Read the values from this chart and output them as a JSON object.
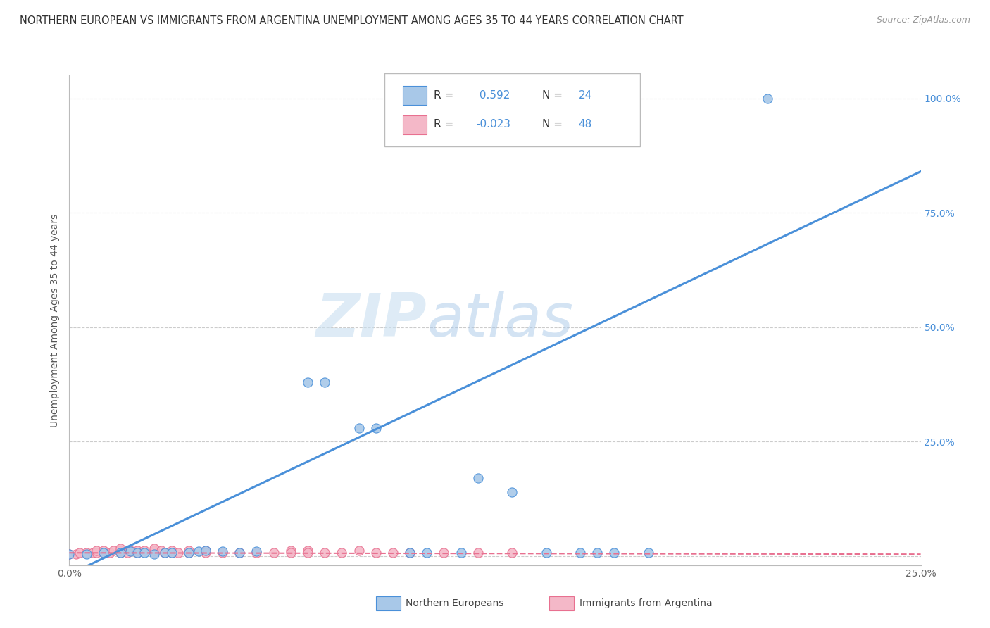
{
  "title": "NORTHERN EUROPEAN VS IMMIGRANTS FROM ARGENTINA UNEMPLOYMENT AMONG AGES 35 TO 44 YEARS CORRELATION CHART",
  "source": "Source: ZipAtlas.com",
  "ylabel": "Unemployment Among Ages 35 to 44 years",
  "xlim": [
    0.0,
    0.25
  ],
  "ylim": [
    -0.02,
    1.05
  ],
  "blue_color": "#a8c8e8",
  "pink_color": "#f4b8c8",
  "blue_line_color": "#4a90d9",
  "pink_line_color": "#e87090",
  "watermark_zip": "ZIP",
  "watermark_atlas": "atlas",
  "title_fontsize": 10.5,
  "source_fontsize": 9,
  "axis_label_fontsize": 10,
  "tick_fontsize": 10,
  "blue_scatter": [
    [
      0.0,
      0.005
    ],
    [
      0.005,
      0.005
    ],
    [
      0.01,
      0.008
    ],
    [
      0.015,
      0.008
    ],
    [
      0.018,
      0.01
    ],
    [
      0.02,
      0.008
    ],
    [
      0.022,
      0.008
    ],
    [
      0.025,
      0.005
    ],
    [
      0.028,
      0.008
    ],
    [
      0.03,
      0.008
    ],
    [
      0.035,
      0.008
    ],
    [
      0.038,
      0.01
    ],
    [
      0.04,
      0.012
    ],
    [
      0.045,
      0.01
    ],
    [
      0.05,
      0.008
    ],
    [
      0.055,
      0.01
    ],
    [
      0.07,
      0.38
    ],
    [
      0.075,
      0.38
    ],
    [
      0.085,
      0.28
    ],
    [
      0.09,
      0.28
    ],
    [
      0.1,
      0.008
    ],
    [
      0.105,
      0.008
    ],
    [
      0.115,
      0.008
    ],
    [
      0.12,
      0.17
    ],
    [
      0.13,
      0.14
    ],
    [
      0.14,
      0.008
    ],
    [
      0.15,
      0.008
    ],
    [
      0.155,
      0.008
    ],
    [
      0.16,
      0.008
    ],
    [
      0.17,
      0.008
    ],
    [
      0.205,
      1.0
    ]
  ],
  "pink_scatter": [
    [
      0.0,
      0.005
    ],
    [
      0.002,
      0.005
    ],
    [
      0.003,
      0.007
    ],
    [
      0.005,
      0.007
    ],
    [
      0.007,
      0.007
    ],
    [
      0.008,
      0.007
    ],
    [
      0.008,
      0.012
    ],
    [
      0.01,
      0.007
    ],
    [
      0.01,
      0.012
    ],
    [
      0.012,
      0.007
    ],
    [
      0.013,
      0.012
    ],
    [
      0.015,
      0.007
    ],
    [
      0.015,
      0.012
    ],
    [
      0.015,
      0.017
    ],
    [
      0.017,
      0.007
    ],
    [
      0.018,
      0.012
    ],
    [
      0.02,
      0.007
    ],
    [
      0.02,
      0.012
    ],
    [
      0.022,
      0.012
    ],
    [
      0.025,
      0.007
    ],
    [
      0.025,
      0.012
    ],
    [
      0.025,
      0.017
    ],
    [
      0.027,
      0.012
    ],
    [
      0.028,
      0.007
    ],
    [
      0.03,
      0.007
    ],
    [
      0.03,
      0.012
    ],
    [
      0.032,
      0.007
    ],
    [
      0.035,
      0.007
    ],
    [
      0.035,
      0.012
    ],
    [
      0.04,
      0.012
    ],
    [
      0.04,
      0.007
    ],
    [
      0.045,
      0.007
    ],
    [
      0.05,
      0.007
    ],
    [
      0.055,
      0.007
    ],
    [
      0.06,
      0.007
    ],
    [
      0.065,
      0.012
    ],
    [
      0.065,
      0.007
    ],
    [
      0.07,
      0.012
    ],
    [
      0.07,
      0.007
    ],
    [
      0.075,
      0.007
    ],
    [
      0.08,
      0.007
    ],
    [
      0.085,
      0.012
    ],
    [
      0.09,
      0.007
    ],
    [
      0.095,
      0.007
    ],
    [
      0.1,
      0.007
    ],
    [
      0.11,
      0.007
    ],
    [
      0.12,
      0.007
    ],
    [
      0.13,
      0.007
    ]
  ],
  "blue_line_x": [
    0.0,
    0.25
  ],
  "blue_line_y": [
    -0.04,
    0.84
  ],
  "pink_line_x": [
    0.0,
    0.25
  ],
  "pink_line_y": [
    0.007,
    0.004
  ]
}
